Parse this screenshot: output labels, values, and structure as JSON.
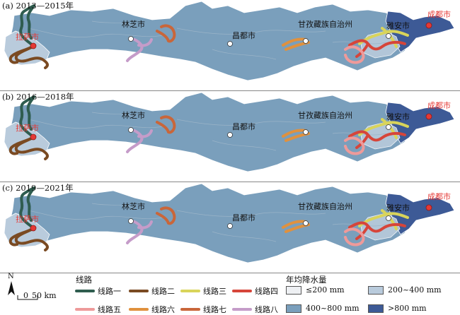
{
  "colors": {
    "precip_lt200": "#eef0f3",
    "precip_200_400": "#b9cbdc",
    "precip_400_800": "#7a9fbc",
    "precip_gt800": "#3d5a96",
    "city_red": "#e53935"
  },
  "panels": [
    {
      "label": "(a) 2013—2015年"
    },
    {
      "label": "(b) 2016—2018年"
    },
    {
      "label": "(c) 2019—2021年"
    }
  ],
  "cities": {
    "lhasa": "拉萨市",
    "nyingchi": "林芝市",
    "qamdo": "昌都市",
    "ganzi": "甘孜藏族自治州",
    "yaan": "雅安市",
    "chengdu": "成都市"
  },
  "legend": {
    "routes_title": "线路",
    "routes": [
      {
        "name": "线路一",
        "color": "#2f5d4f"
      },
      {
        "name": "线路二",
        "color": "#7a4a22"
      },
      {
        "name": "线路三",
        "color": "#d9d45a"
      },
      {
        "name": "线路四",
        "color": "#d6453a"
      },
      {
        "name": "线路五",
        "color": "#ee9a9a"
      },
      {
        "name": "线路六",
        "color": "#e0913e"
      },
      {
        "name": "线路七",
        "color": "#c9663a"
      },
      {
        "name": "线路八",
        "color": "#c59cc9"
      }
    ],
    "precip_title": "年均降水量",
    "precip": [
      {
        "label": "≤200 mm",
        "color": "#eef0f3"
      },
      {
        "label": "200~400 mm",
        "color": "#b9cbdc"
      },
      {
        "label": "400~800 mm",
        "color": "#7a9fbc"
      },
      {
        "label": ">800 mm",
        "color": "#3d5a96"
      }
    ],
    "north": "N",
    "scale_zero": "0",
    "scale_label": "50 km"
  }
}
